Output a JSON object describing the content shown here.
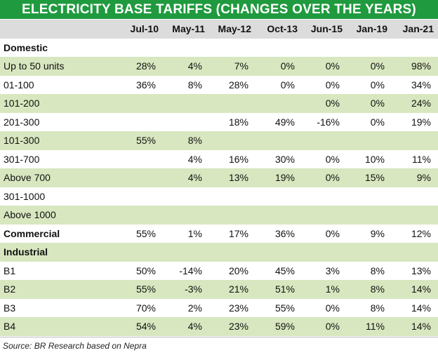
{
  "chart_data": {
    "type": "table",
    "title": "ELECTRICITY BASE TARIFFS (CHANGES OVER THE YEARS)",
    "columns": [
      "Jul-10",
      "May-11",
      "May-12",
      "Oct-13",
      "Jun-15",
      "Jan-19",
      "Jan-21"
    ],
    "rows": [
      {
        "label": "Domestic",
        "section": true,
        "values": [
          "",
          "",
          "",
          "",
          "",
          "",
          ""
        ]
      },
      {
        "label": "Up to 50 units",
        "values": [
          "28%",
          "4%",
          "7%",
          "0%",
          "0%",
          "0%",
          "98%"
        ]
      },
      {
        "label": "01-100",
        "values": [
          "36%",
          "8%",
          "28%",
          "0%",
          "0%",
          "0%",
          "34%"
        ]
      },
      {
        "label": "101-200",
        "values": [
          "",
          "",
          "",
          "",
          "0%",
          "0%",
          "24%"
        ]
      },
      {
        "label": "201-300",
        "values": [
          "",
          "",
          "18%",
          "49%",
          "-16%",
          "0%",
          "19%"
        ]
      },
      {
        "label": "101-300",
        "values": [
          "55%",
          "8%",
          "",
          "",
          "",
          "",
          ""
        ]
      },
      {
        "label": "301-700",
        "values": [
          "",
          "4%",
          "16%",
          "30%",
          "0%",
          "10%",
          "11%"
        ]
      },
      {
        "label": "Above 700",
        "values": [
          "",
          "4%",
          "13%",
          "19%",
          "0%",
          "15%",
          "9%"
        ]
      },
      {
        "label": "301-1000",
        "values": [
          "",
          "",
          "",
          "",
          "",
          "",
          ""
        ]
      },
      {
        "label": "Above 1000",
        "values": [
          "",
          "",
          "",
          "",
          "",
          "",
          ""
        ]
      },
      {
        "label": "Commercial",
        "section": true,
        "values": [
          "55%",
          "1%",
          "17%",
          "36%",
          "0%",
          "9%",
          "12%"
        ]
      },
      {
        "label": "Industrial",
        "section": true,
        "values": [
          "",
          "",
          "",
          "",
          "",
          "",
          ""
        ]
      },
      {
        "label": "B1",
        "values": [
          "50%",
          "-14%",
          "20%",
          "45%",
          "3%",
          "8%",
          "13%"
        ]
      },
      {
        "label": "B2",
        "values": [
          "55%",
          "-3%",
          "21%",
          "51%",
          "1%",
          "8%",
          "14%"
        ]
      },
      {
        "label": "B3",
        "values": [
          "70%",
          "2%",
          "23%",
          "55%",
          "0%",
          "8%",
          "14%"
        ]
      },
      {
        "label": "B4",
        "values": [
          "54%",
          "4%",
          "23%",
          "59%",
          "0%",
          "11%",
          "14%"
        ]
      }
    ],
    "source": "Source: BR Research based on Nepra"
  },
  "colors": {
    "title_bg": "#1f9a3e",
    "header_bg": "#dcdcdc",
    "row_shade": "#d8e7bf",
    "row_plain": "#ffffff"
  }
}
